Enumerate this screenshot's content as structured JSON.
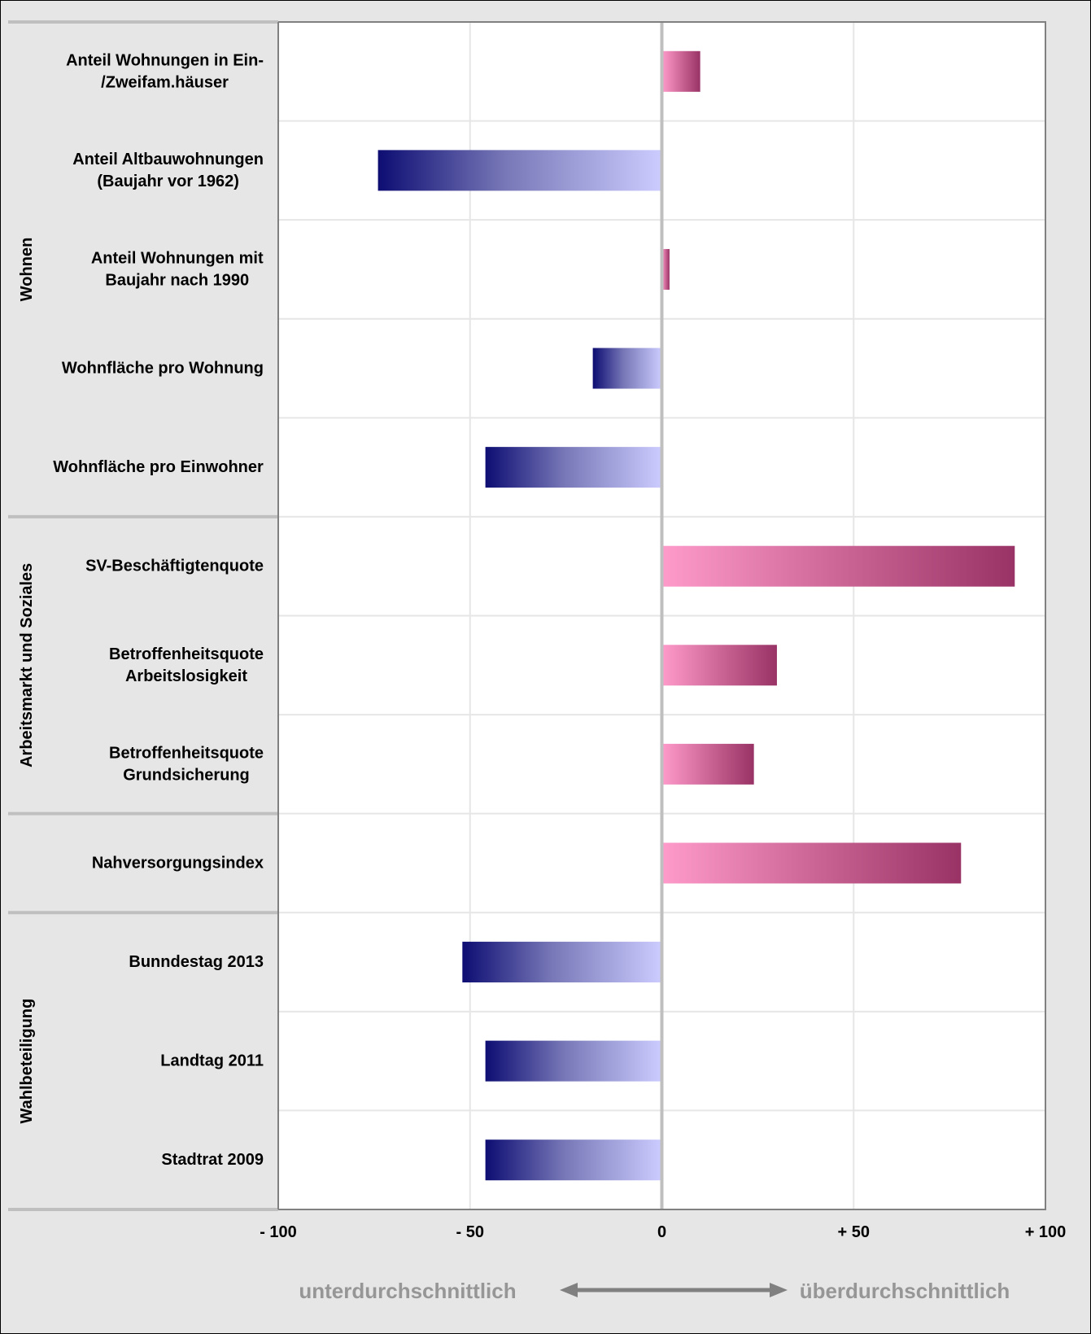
{
  "chart_data": {
    "type": "bar",
    "orientation": "horizontal",
    "groups": [
      {
        "name": "Wohnen",
        "items": [
          0,
          1,
          2,
          3,
          4
        ]
      },
      {
        "name": "Arbeitsmarkt und Soziales",
        "items": [
          5,
          6,
          7
        ]
      },
      {
        "name": "",
        "items": [
          8
        ]
      },
      {
        "name": "Wahlbeteiligung",
        "items": [
          9,
          10,
          11
        ]
      }
    ],
    "categories": [
      [
        "Anteil Wohnungen in Ein-",
        "/Zweifam.häuser"
      ],
      [
        "Anteil Altbauwohnungen",
        "(Baujahr vor 1962)"
      ],
      [
        "Anteil Wohnungen mit",
        "Baujahr nach 1990"
      ],
      [
        "Wohnfläche pro Wohnung"
      ],
      [
        "Wohnfläche pro Einwohner"
      ],
      [
        "SV-Beschäftigtenquote"
      ],
      [
        "Betroffenheitsquote",
        "Arbeitslosigkeit"
      ],
      [
        "Betroffenheitsquote",
        "Grundsicherung"
      ],
      [
        "Nahversorgungsindex"
      ],
      [
        "Bunndestag 2013"
      ],
      [
        "Landtag 2011"
      ],
      [
        "Stadtrat 2009"
      ]
    ],
    "values": [
      10,
      -74,
      2,
      -18,
      -46,
      92,
      30,
      24,
      78,
      -52,
      -46,
      -46
    ],
    "xlim": [
      -100,
      100
    ],
    "xticks": [
      -100,
      -50,
      0,
      50,
      100
    ],
    "xtick_labels": [
      "- 100",
      "- 50",
      "0",
      "+ 50",
      "+ 100"
    ],
    "grid": true,
    "colors": {
      "negative_dark": "#0d0d73",
      "negative_light": "#ccccff",
      "positive_light": "#ff9bcb",
      "positive_dark": "#993366",
      "frame_gray": "#e6e6e6",
      "axis_gray": "#bfbfbf",
      "legend_gray": "#969696"
    }
  },
  "legend": {
    "below_label": "unterdurchschnittlich",
    "above_label": "überdurchschnittlich"
  }
}
